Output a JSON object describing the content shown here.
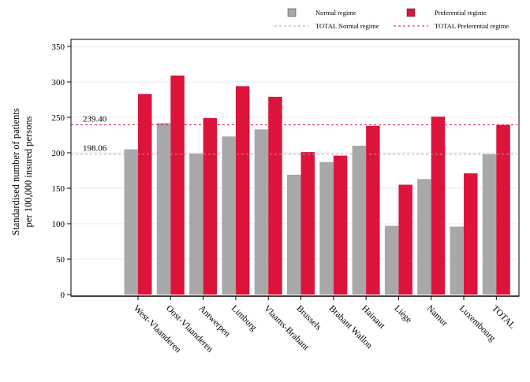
{
  "chart_data": {
    "type": "bar",
    "ylabel_lines": [
      "Standardised number of patients",
      "per 100,000 insured persons"
    ],
    "xlabel": "",
    "ylim": [
      0,
      350
    ],
    "yticks": [
      0,
      50,
      100,
      150,
      200,
      250,
      300,
      350
    ],
    "grid": true,
    "legend_position": "top",
    "categories": [
      "West-Vlaanderen",
      "Oost-Vlaanderen",
      "Antwerpen",
      "Limburg",
      "Vlaams-Brabant",
      "Brussels",
      "Brabant Wallon",
      "Hainaut",
      "Liège",
      "Namur",
      "Luxembourg",
      "TOTAL"
    ],
    "series": [
      {
        "name": "Normal regime",
        "color": "#a8a8a8",
        "values": [
          205,
          242,
          199,
          223,
          233,
          169,
          187,
          210,
          97,
          163,
          96,
          198.06
        ]
      },
      {
        "name": "Preferential regime",
        "color": "#dc143c",
        "values": [
          283,
          309,
          249,
          294,
          279,
          201,
          196,
          238,
          155,
          251,
          171,
          239.4
        ]
      }
    ],
    "reference_lines": [
      {
        "name": "TOTAL Normal regime",
        "value": 198.06,
        "label": "198.06",
        "color": "#a8a8a8"
      },
      {
        "name": "TOTAL Preferential regime",
        "value": 239.4,
        "label": "239.40",
        "color": "#dc143c"
      }
    ]
  }
}
